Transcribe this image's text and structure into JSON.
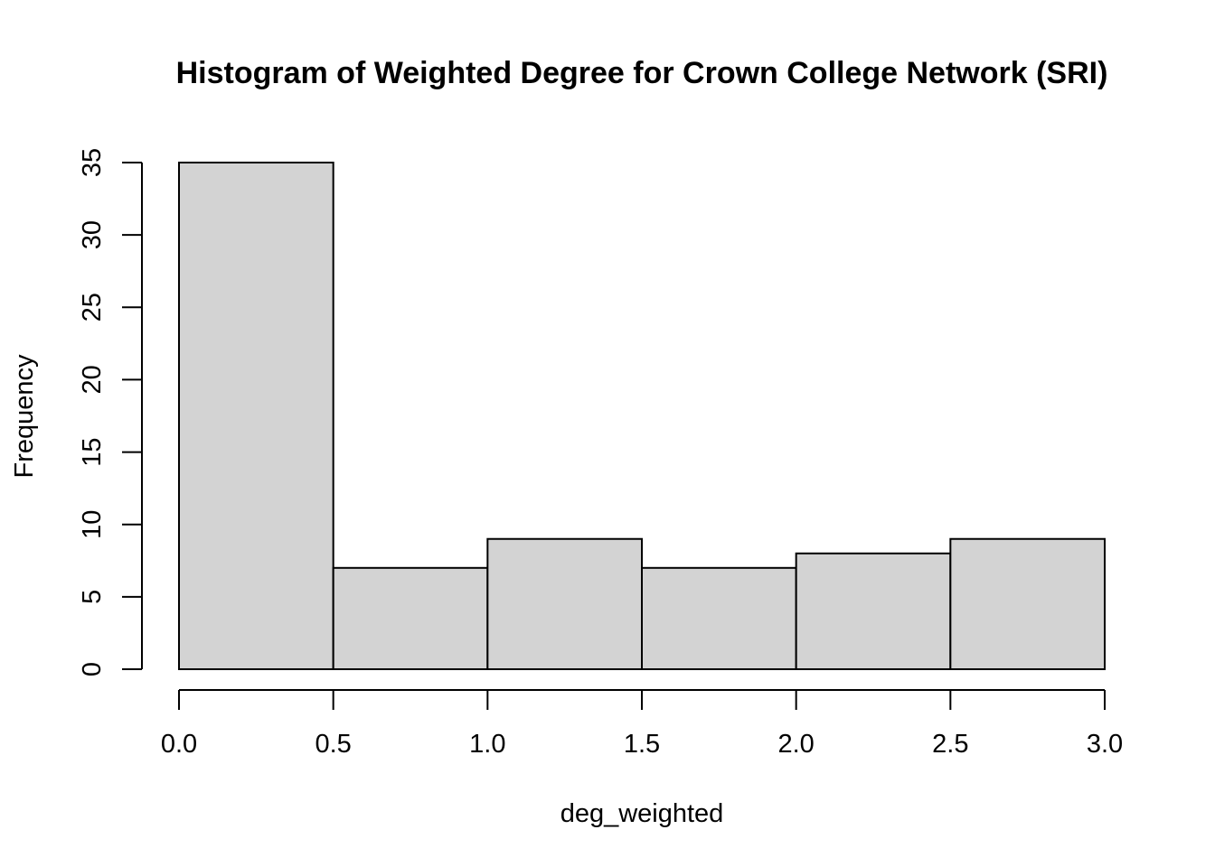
{
  "chart_data": {
    "type": "bar",
    "title": "Histogram of Weighted Degree for Crown College Network (SRI)",
    "xlabel": "deg_weighted",
    "ylabel": "Frequency",
    "bins": [
      {
        "start": 0.0,
        "end": 0.5,
        "count": 35
      },
      {
        "start": 0.5,
        "end": 1.0,
        "count": 7
      },
      {
        "start": 1.0,
        "end": 1.5,
        "count": 9
      },
      {
        "start": 1.5,
        "end": 2.0,
        "count": 7
      },
      {
        "start": 2.0,
        "end": 2.5,
        "count": 8
      },
      {
        "start": 2.5,
        "end": 3.0,
        "count": 9
      }
    ],
    "xlim": [
      0,
      3
    ],
    "ylim": [
      0,
      35
    ],
    "x_ticks": [
      "0.0",
      "0.5",
      "1.0",
      "1.5",
      "2.0",
      "2.5",
      "3.0"
    ],
    "y_ticks": [
      "0",
      "5",
      "10",
      "15",
      "20",
      "25",
      "30",
      "35"
    ],
    "grid": false,
    "bar_color": "#d3d3d3",
    "edge_color": "#000000"
  }
}
